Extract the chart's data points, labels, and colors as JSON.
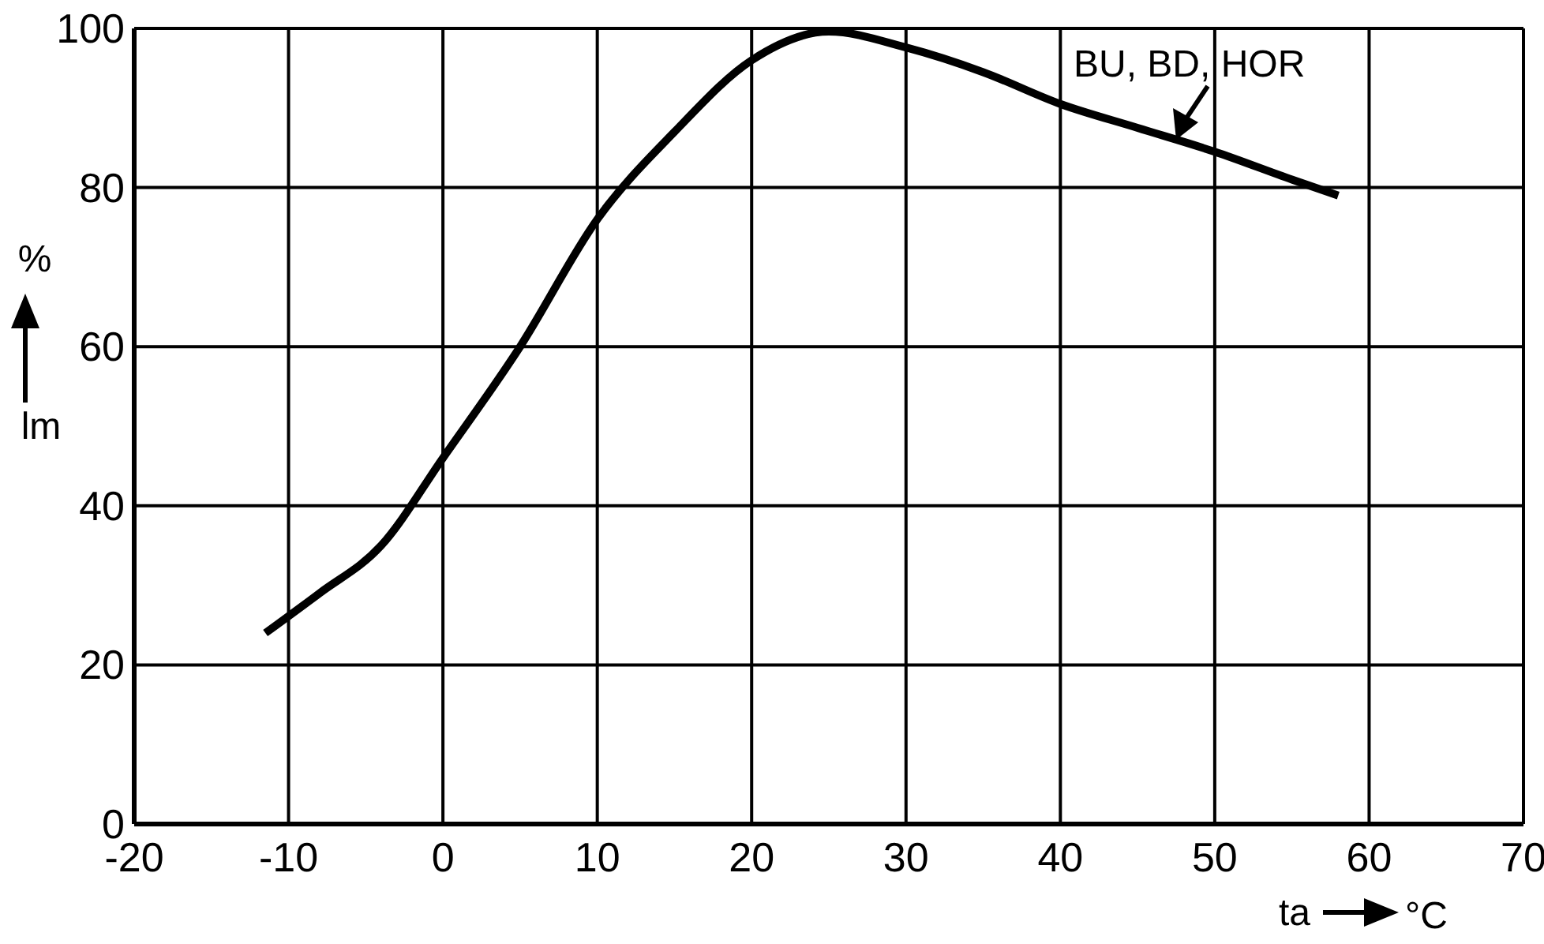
{
  "chart_data": {
    "type": "line",
    "xlabel": "ta",
    "ylabel": "lm",
    "x": [
      -11.5,
      -8,
      -4,
      0,
      5,
      10,
      15,
      20,
      25,
      30,
      35,
      40,
      45,
      50,
      55,
      58
    ],
    "series": [
      {
        "color": "#000000",
        "values": [
          24,
          29,
          35,
          46,
          60,
          76,
          87,
          96,
          99.6,
          97.6,
          94.5,
          90.5,
          87.5,
          84.5,
          81,
          79
        ]
      }
    ],
    "xlim": [
      -20,
      70
    ],
    "ylim": [
      0,
      100
    ],
    "xticks": [
      -20,
      -10,
      0,
      10,
      20,
      30,
      40,
      50,
      60,
      70
    ],
    "yticks": [
      0,
      20,
      40,
      60,
      80,
      100
    ],
    "grid": true,
    "marker": "none",
    "line_style": "solid",
    "annotations": [
      {
        "text": "BU, BD, HOR",
        "x": 47.5,
        "y": 86
      },
      "%",
      "°C"
    ]
  }
}
